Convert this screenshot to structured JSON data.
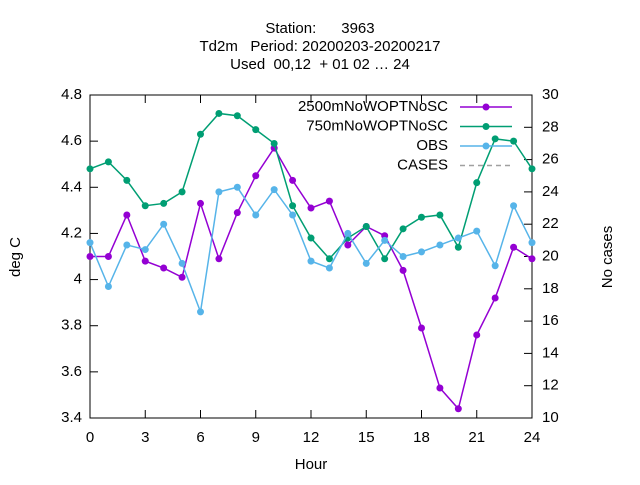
{
  "chart_data": {
    "type": "line",
    "title": [
      "Station:      3963",
      "Td2m   Period: 20200203-20200217",
      "Used  00,12  + 01 02 … 24"
    ],
    "xlabel": "Hour",
    "ylabel": "deg C",
    "y2label": "No cases",
    "x": [
      0,
      1,
      2,
      3,
      4,
      5,
      6,
      7,
      8,
      9,
      10,
      11,
      12,
      13,
      14,
      15,
      16,
      17,
      18,
      19,
      20,
      21,
      22,
      23,
      24
    ],
    "xlim": [
      0,
      24
    ],
    "xticks": [
      0,
      3,
      6,
      9,
      12,
      15,
      18,
      21,
      24
    ],
    "ylim": [
      3.4,
      4.8
    ],
    "yticks": [
      3.4,
      3.6,
      3.8,
      4,
      4.2,
      4.4,
      4.6,
      4.8
    ],
    "y2lim": [
      10,
      30
    ],
    "y2ticks": [
      10,
      12,
      14,
      16,
      18,
      20,
      22,
      24,
      26,
      28,
      30
    ],
    "legend": "top-right",
    "series": [
      {
        "name": "2500mNoWOPTNoSC",
        "color": "#9400d3",
        "values": [
          4.1,
          4.1,
          4.28,
          4.08,
          4.05,
          4.01,
          4.33,
          4.09,
          4.29,
          4.45,
          4.57,
          4.43,
          4.31,
          4.34,
          4.15,
          4.23,
          4.19,
          4.04,
          3.79,
          3.53,
          3.44,
          3.76,
          3.92,
          4.14,
          4.09
        ]
      },
      {
        "name": "750mNoWOPTNoSC",
        "color": "#009e73",
        "values": [
          4.48,
          4.51,
          4.43,
          4.32,
          4.33,
          4.38,
          4.63,
          4.72,
          4.71,
          4.65,
          4.59,
          4.32,
          4.18,
          4.09,
          4.18,
          4.23,
          4.09,
          4.22,
          4.27,
          4.28,
          4.14,
          4.42,
          4.61,
          4.6,
          4.48
        ]
      },
      {
        "name": "OBS",
        "color": "#56b4e9",
        "values": [
          4.16,
          3.97,
          4.15,
          4.13,
          4.24,
          4.07,
          3.86,
          4.38,
          4.4,
          4.28,
          4.39,
          4.28,
          4.08,
          4.05,
          4.2,
          4.07,
          4.17,
          4.1,
          4.12,
          4.15,
          4.18,
          4.21,
          4.06,
          4.32,
          4.16
        ]
      },
      {
        "name": "CASES",
        "color": "#a0a0a0",
        "axis": "y2",
        "dashed": true,
        "values": [
          null,
          null,
          null,
          null,
          null,
          null,
          null,
          null,
          null,
          null,
          null,
          null,
          null,
          null,
          null,
          null,
          null,
          null,
          null,
          null,
          null,
          null,
          null,
          null,
          null
        ]
      }
    ]
  }
}
